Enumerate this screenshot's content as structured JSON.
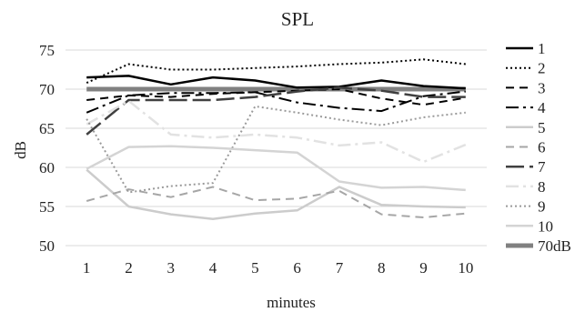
{
  "chart_data": {
    "type": "line",
    "title": "SPL",
    "xlabel": "minutes",
    "ylabel": "dB",
    "ylim": [
      50,
      75
    ],
    "yticks": [
      "50",
      "55",
      "60",
      "65",
      "70",
      "75"
    ],
    "categories": [
      "1",
      "2",
      "3",
      "4",
      "5",
      "6",
      "7",
      "8",
      "9",
      "10"
    ],
    "grid": "horizontal",
    "legend": "right",
    "series": [
      {
        "name": "1",
        "values": [
          71.5,
          71.7,
          70.6,
          71.5,
          71.1,
          70.2,
          70.3,
          71.1,
          70.4,
          70.1
        ],
        "color": "#000000",
        "style": "solid",
        "width": 2.5
      },
      {
        "name": "2",
        "values": [
          70.8,
          73.2,
          72.5,
          72.5,
          72.7,
          72.9,
          73.2,
          73.4,
          73.8,
          73.2
        ],
        "color": "#000000",
        "style": "dotted",
        "width": 2
      },
      {
        "name": "3",
        "values": [
          68.6,
          69.2,
          69.0,
          69.4,
          69.6,
          69.8,
          70.0,
          68.8,
          68.0,
          68.9
        ],
        "color": "#000000",
        "style": "dashed",
        "width": 2
      },
      {
        "name": "4",
        "values": [
          67.0,
          69.2,
          69.5,
          69.5,
          69.6,
          68.3,
          67.6,
          67.2,
          69.1,
          69.7
        ],
        "color": "#000000",
        "style": "dashdot",
        "width": 2
      },
      {
        "name": "5",
        "values": [
          59.7,
          55.0,
          54.0,
          53.4,
          54.1,
          54.5,
          57.5,
          55.2,
          55.0,
          54.9
        ],
        "color": "#cccccc",
        "style": "solid",
        "width": 2.5
      },
      {
        "name": "6",
        "values": [
          55.7,
          57.2,
          56.2,
          57.5,
          55.8,
          56.0,
          57.0,
          54.0,
          53.6,
          54.1
        ],
        "color": "#a6a6a6",
        "style": "dashed",
        "width": 2
      },
      {
        "name": "7",
        "values": [
          64.2,
          68.6,
          68.6,
          68.6,
          69.0,
          69.7,
          70.2,
          69.8,
          69.0,
          69.0
        ],
        "color": "#404040",
        "style": "longdash",
        "width": 2.5
      },
      {
        "name": "8",
        "values": [
          65.5,
          68.5,
          64.2,
          63.8,
          64.2,
          63.8,
          62.8,
          63.2,
          60.7,
          62.9
        ],
        "color": "#e2e2e2",
        "style": "dashdot",
        "width": 2.5
      },
      {
        "name": "9",
        "values": [
          66.2,
          56.8,
          57.6,
          58.0,
          67.8,
          67.0,
          66.1,
          65.4,
          66.4,
          67.0
        ],
        "color": "#9a9a9a",
        "style": "dotted",
        "width": 2
      },
      {
        "name": "10",
        "values": [
          59.8,
          62.6,
          62.7,
          62.5,
          62.2,
          61.9,
          58.2,
          57.4,
          57.5,
          57.1
        ],
        "color": "#d4d4d4",
        "style": "solid",
        "width": 2.5
      },
      {
        "name": "70dB",
        "values": [
          70,
          70,
          70,
          70,
          70,
          70,
          70,
          70,
          70,
          70
        ],
        "color": "#808080",
        "style": "solid",
        "width": 5
      }
    ]
  }
}
